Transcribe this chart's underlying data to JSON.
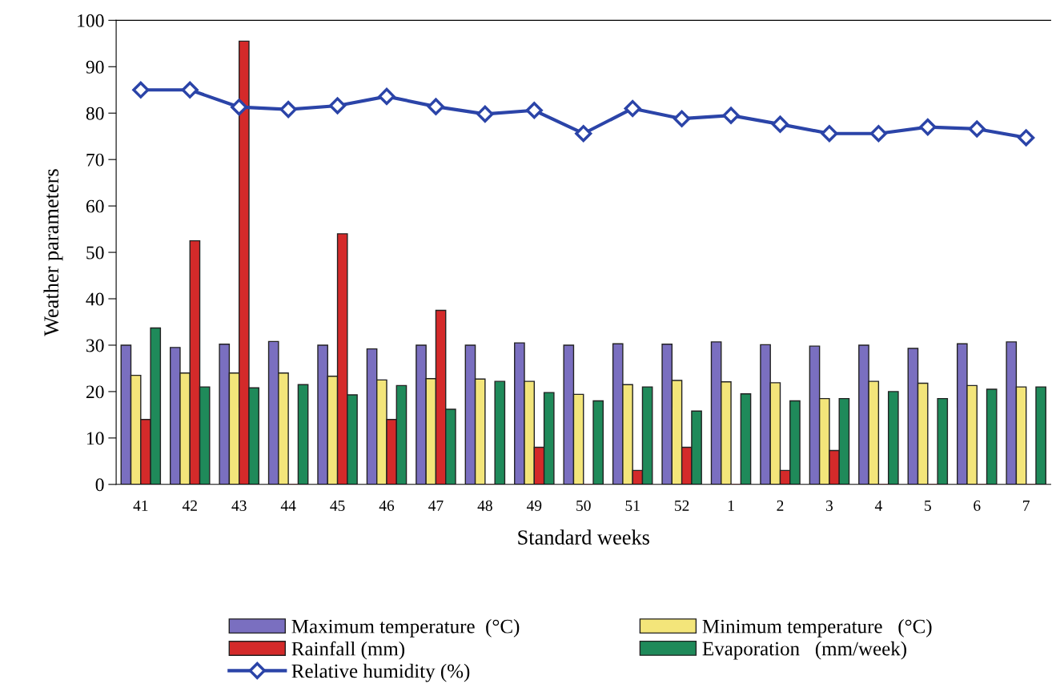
{
  "chart_data": {
    "type": "bar",
    "xlabel": "Standard weeks",
    "ylabel": "Weather parameters",
    "categories": [
      "41",
      "42",
      "43",
      "44",
      "45",
      "46",
      "47",
      "48",
      "49",
      "50",
      "51",
      "52",
      "1",
      "2",
      "3",
      "4",
      "5",
      "6",
      "7"
    ],
    "ylim": [
      0,
      100
    ],
    "yticks": [
      0,
      10,
      20,
      30,
      40,
      50,
      60,
      70,
      80,
      90,
      100
    ],
    "grid": false,
    "legend": "bottom",
    "series": [
      {
        "name": "Maximum temperature  (°C)",
        "color": "#7a6fc0",
        "values": [
          30,
          29.5,
          30.2,
          30.8,
          30,
          29.2,
          30,
          30,
          30.5,
          30,
          30.3,
          30.2,
          30.7,
          30.1,
          29.8,
          30,
          29.3,
          30.3,
          30.7
        ]
      },
      {
        "name": "Minimum temperature   (°C)",
        "color": "#f3e57a",
        "values": [
          23.5,
          24,
          24,
          24,
          23.3,
          22.5,
          22.8,
          22.7,
          22.2,
          19.4,
          21.5,
          22.4,
          22.1,
          21.9,
          18.5,
          22.2,
          21.8,
          21.3,
          21
        ]
      },
      {
        "name": "Rainfall (mm)",
        "color": "#d42a2a",
        "values": [
          14,
          52.5,
          95.5,
          0,
          54,
          14,
          37.5,
          0,
          8,
          0,
          3,
          8,
          0,
          3,
          7.3,
          0,
          0,
          0,
          0
        ]
      },
      {
        "name": "Evaporation   (mm/week)",
        "color": "#1f8a5a",
        "values": [
          33.7,
          21,
          20.8,
          21.5,
          19.3,
          21.3,
          16.2,
          22.2,
          19.8,
          18,
          21,
          15.8,
          19.5,
          18,
          18.5,
          20,
          18.5,
          20.5,
          21
        ]
      },
      {
        "name": "Relative humidity (%)",
        "type": "line",
        "color": "#2b44a8",
        "marker": "diamond",
        "line_style": "solid",
        "values": [
          85,
          85,
          81.3,
          80.8,
          81.6,
          83.6,
          81.4,
          79.8,
          80.6,
          75.6,
          81,
          78.8,
          79.5,
          77.6,
          75.6,
          75.6,
          77,
          76.6,
          74.7
        ]
      }
    ]
  }
}
